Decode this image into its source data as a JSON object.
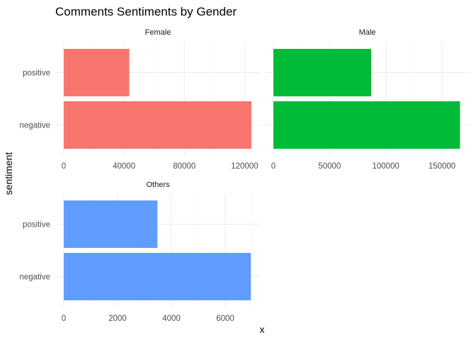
{
  "chart_data": {
    "type": "bar",
    "orientation": "horizontal",
    "title": "Comments Sentiments by Gender",
    "xlabel": "x",
    "ylabel": "sentiment",
    "categories": [
      "negative",
      "positive"
    ],
    "grid": true,
    "legend": "none",
    "panels": [
      {
        "name": "Female",
        "color": "#F8766D",
        "values": {
          "negative": 124500,
          "positive": 43500
        },
        "xlim": [
          0,
          125000
        ],
        "ticks": [
          0,
          40000,
          80000,
          120000
        ],
        "tick_labels": [
          "0",
          "40000",
          "80000",
          "120000"
        ]
      },
      {
        "name": "Male",
        "color": "#00BA38",
        "values": {
          "negative": 166000,
          "positive": 87000
        },
        "xlim": [
          0,
          167000
        ],
        "ticks": [
          0,
          50000,
          100000,
          150000
        ],
        "tick_labels": [
          "0",
          "50000",
          "100000",
          "150000"
        ]
      },
      {
        "name": "Others",
        "color": "#619CFF",
        "values": {
          "negative": 6950,
          "positive": 3480
        },
        "xlim": [
          0,
          7000
        ],
        "ticks": [
          0,
          2000,
          4000,
          6000
        ],
        "tick_labels": [
          "0",
          "2000",
          "4000",
          "6000"
        ]
      }
    ]
  }
}
